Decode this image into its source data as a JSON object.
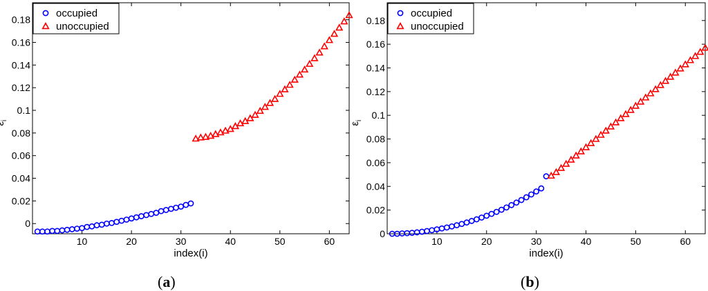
{
  "chart_data": [
    {
      "type": "scatter",
      "panel": "(a)",
      "caption_bold": "a",
      "xlabel": "index(i)",
      "ylabel": "ε_i",
      "ylabel_main": "ε",
      "ylabel_sub": "i",
      "xlim": [
        0,
        64
      ],
      "ylim": [
        -0.009,
        0.195
      ],
      "xticks": [
        "10",
        "20",
        "30",
        "40",
        "50",
        "60"
      ],
      "xtick_values": [
        10,
        20,
        30,
        40,
        50,
        60
      ],
      "yticks": [
        "0",
        "0.02",
        "0.04",
        "0.06",
        "0.08",
        "0.1",
        "0.12",
        "0.14",
        "0.16",
        "0.18"
      ],
      "ytick_values": [
        0,
        0.02,
        0.04,
        0.06,
        0.08,
        0.1,
        0.12,
        0.14,
        0.16,
        0.18
      ],
      "legend_position": "top-left",
      "series": [
        {
          "name": "occupied",
          "marker": "circle",
          "color": "#0000ff",
          "x": [
            1,
            2,
            3,
            4,
            5,
            6,
            7,
            8,
            9,
            10,
            11,
            12,
            13,
            14,
            15,
            16,
            17,
            18,
            19,
            20,
            21,
            22,
            23,
            24,
            25,
            26,
            27,
            28,
            29,
            30,
            31,
            32
          ],
          "y": [
            -0.007,
            -0.007,
            -0.007,
            -0.0065,
            -0.0065,
            -0.006,
            -0.0055,
            -0.005,
            -0.0045,
            -0.004,
            -0.003,
            -0.0025,
            -0.0015,
            -0.001,
            0.0,
            0.0005,
            0.0015,
            0.0025,
            0.0035,
            0.0045,
            0.0055,
            0.0065,
            0.0075,
            0.0085,
            0.0095,
            0.011,
            0.012,
            0.013,
            0.014,
            0.015,
            0.0165,
            0.0178
          ]
        },
        {
          "name": "unoccupied",
          "marker": "triangle",
          "color": "#ff0000",
          "x": [
            33,
            34,
            35,
            36,
            37,
            38,
            39,
            40,
            41,
            42,
            43,
            44,
            45,
            46,
            47,
            48,
            49,
            50,
            51,
            52,
            53,
            54,
            55,
            56,
            57,
            58,
            59,
            60,
            61,
            62,
            63,
            64
          ],
          "y": [
            0.075,
            0.076,
            0.0765,
            0.0775,
            0.079,
            0.0805,
            0.082,
            0.0835,
            0.086,
            0.0885,
            0.0905,
            0.093,
            0.096,
            0.0995,
            0.103,
            0.1065,
            0.11,
            0.1145,
            0.1185,
            0.1225,
            0.127,
            0.1315,
            0.136,
            0.141,
            0.146,
            0.151,
            0.1565,
            0.162,
            0.1675,
            0.173,
            0.1785,
            0.184
          ]
        }
      ]
    },
    {
      "type": "scatter",
      "panel": "(b)",
      "caption_bold": "b",
      "xlabel": "index(i)",
      "ylabel": "ε_i",
      "ylabel_main": "ε",
      "ylabel_sub": "i",
      "xlim": [
        0,
        64
      ],
      "ylim": [
        0,
        0.195
      ],
      "xticks": [
        "10",
        "20",
        "30",
        "40",
        "50",
        "60"
      ],
      "xtick_values": [
        10,
        20,
        30,
        40,
        50,
        60
      ],
      "yticks": [
        "0",
        "0.02",
        "0.04",
        "0.06",
        "0.08",
        "0.1",
        "0.12",
        "0.14",
        "0.16",
        "0.18"
      ],
      "ytick_values": [
        0,
        0.02,
        0.04,
        0.06,
        0.08,
        0.1,
        0.12,
        0.14,
        0.16,
        0.18
      ],
      "legend_position": "top-left",
      "series": [
        {
          "name": "occupied",
          "marker": "circle",
          "color": "#0000ff",
          "x": [
            1,
            2,
            3,
            4,
            5,
            6,
            7,
            8,
            9,
            10,
            11,
            12,
            13,
            14,
            15,
            16,
            17,
            18,
            19,
            20,
            21,
            22,
            23,
            24,
            25,
            26,
            27,
            28,
            29,
            30,
            31,
            32
          ],
          "y": [
            0.0,
            0.0,
            0.0003,
            0.0005,
            0.0008,
            0.0012,
            0.0017,
            0.0023,
            0.003,
            0.0037,
            0.0045,
            0.0053,
            0.0062,
            0.0072,
            0.0083,
            0.0095,
            0.0108,
            0.0122,
            0.0137,
            0.0152,
            0.0168,
            0.0185,
            0.0203,
            0.0222,
            0.0242,
            0.0263,
            0.0285,
            0.0308,
            0.0332,
            0.0357,
            0.0383,
            0.0485
          ]
        },
        {
          "name": "unoccupied",
          "marker": "triangle",
          "color": "#ff0000",
          "x": [
            33,
            34,
            35,
            36,
            37,
            38,
            39,
            40,
            41,
            42,
            43,
            44,
            45,
            46,
            47,
            48,
            49,
            50,
            51,
            52,
            53,
            54,
            55,
            56,
            57,
            58,
            59,
            60,
            61,
            62,
            63,
            64
          ],
          "y": [
            0.049,
            0.052,
            0.0555,
            0.059,
            0.0625,
            0.066,
            0.0695,
            0.073,
            0.0765,
            0.08,
            0.0835,
            0.087,
            0.0905,
            0.094,
            0.0975,
            0.101,
            0.1045,
            0.108,
            0.1115,
            0.115,
            0.1185,
            0.122,
            0.1255,
            0.129,
            0.1325,
            0.136,
            0.1395,
            0.143,
            0.1465,
            0.15,
            0.1535,
            0.157
          ]
        }
      ]
    }
  ]
}
